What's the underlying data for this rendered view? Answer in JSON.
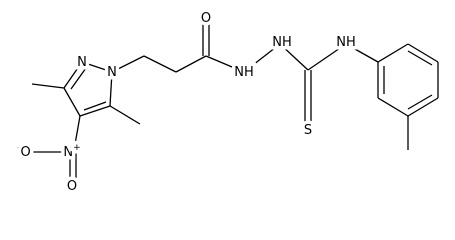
{
  "atoms": [
    {
      "label": "N"
    },
    {
      "label": "N"
    },
    {
      "label": "O"
    },
    {
      "label": "NH"
    },
    {
      "label": "NH"
    },
    {
      "label": "S"
    },
    {
      "label": "NH"
    },
    {
      "label": "N",
      "charge": "+"
    },
    {
      "label": "O",
      "charge": "-"
    },
    {
      "label": "O"
    }
  ]
}
